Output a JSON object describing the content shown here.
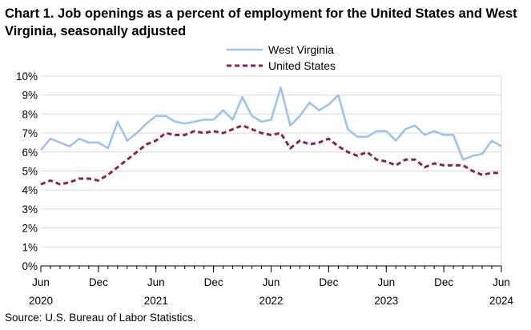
{
  "chart_data": {
    "type": "line",
    "title": "Chart 1. Job openings as a percent of employment for the United States and West Virginia, seasonally adjusted",
    "source": "Source: U.S. Bureau of Labor Statistics.",
    "xlabel": "",
    "ylabel": "",
    "ylim": [
      0,
      10
    ],
    "y_ticks": [
      "0%",
      "1%",
      "2%",
      "3%",
      "4%",
      "5%",
      "6%",
      "7%",
      "8%",
      "9%",
      "10%"
    ],
    "x_ticks": [
      {
        "index": 0,
        "month": "Jun",
        "year": "2020"
      },
      {
        "index": 6,
        "month": "Dec",
        "year": ""
      },
      {
        "index": 12,
        "month": "Jun",
        "year": "2021"
      },
      {
        "index": 18,
        "month": "Dec",
        "year": ""
      },
      {
        "index": 24,
        "month": "Jun",
        "year": "2022"
      },
      {
        "index": 30,
        "month": "Dec",
        "year": ""
      },
      {
        "index": 36,
        "month": "Jun",
        "year": "2023"
      },
      {
        "index": 42,
        "month": "Dec",
        "year": ""
      },
      {
        "index": 48,
        "month": "Jun",
        "year": "2024"
      }
    ],
    "x": [
      "Jun 2020",
      "Jul 2020",
      "Aug 2020",
      "Sep 2020",
      "Oct 2020",
      "Nov 2020",
      "Dec 2020",
      "Jan 2021",
      "Feb 2021",
      "Mar 2021",
      "Apr 2021",
      "May 2021",
      "Jun 2021",
      "Jul 2021",
      "Aug 2021",
      "Sep 2021",
      "Oct 2021",
      "Nov 2021",
      "Dec 2021",
      "Jan 2022",
      "Feb 2022",
      "Mar 2022",
      "Apr 2022",
      "May 2022",
      "Jun 2022",
      "Jul 2022",
      "Aug 2022",
      "Sep 2022",
      "Oct 2022",
      "Nov 2022",
      "Dec 2022",
      "Jan 2023",
      "Feb 2023",
      "Mar 2023",
      "Apr 2023",
      "May 2023",
      "Jun 2023",
      "Jul 2023",
      "Aug 2023",
      "Sep 2023",
      "Oct 2023",
      "Nov 2023",
      "Dec 2023",
      "Jan 2024",
      "Feb 2024",
      "Mar 2024",
      "Apr 2024",
      "May 2024",
      "Jun 2024"
    ],
    "legend_position": "top-center",
    "grid": true,
    "series": [
      {
        "name": "West Virginia",
        "color": "#9dc3f0",
        "style": "solid",
        "values": [
          6.1,
          6.7,
          6.5,
          6.3,
          6.7,
          6.5,
          6.5,
          6.2,
          7.6,
          6.6,
          7.0,
          7.5,
          7.9,
          7.9,
          7.6,
          7.5,
          7.6,
          7.7,
          7.7,
          8.2,
          7.7,
          8.9,
          7.9,
          7.6,
          7.7,
          9.4,
          7.4,
          7.9,
          8.6,
          8.2,
          8.5,
          9.0,
          7.2,
          6.8,
          6.8,
          7.1,
          7.1,
          6.6,
          7.2,
          7.4,
          6.9,
          7.1,
          6.9,
          6.9,
          5.6,
          5.8,
          5.9,
          6.6,
          6.3
        ]
      },
      {
        "name": "United States",
        "color": "#8b2252",
        "style": "dashed",
        "values": [
          4.3,
          4.5,
          4.3,
          4.4,
          4.6,
          4.6,
          4.5,
          4.8,
          5.2,
          5.6,
          6.0,
          6.4,
          6.6,
          7.0,
          6.9,
          6.9,
          7.1,
          7.0,
          7.1,
          7.0,
          7.2,
          7.4,
          7.2,
          7.0,
          6.9,
          7.0,
          6.2,
          6.6,
          6.4,
          6.5,
          6.7,
          6.3,
          6.0,
          5.8,
          6.0,
          5.6,
          5.5,
          5.3,
          5.6,
          5.6,
          5.2,
          5.4,
          5.3,
          5.3,
          5.3,
          5.0,
          4.8,
          4.9,
          4.9
        ]
      }
    ]
  }
}
